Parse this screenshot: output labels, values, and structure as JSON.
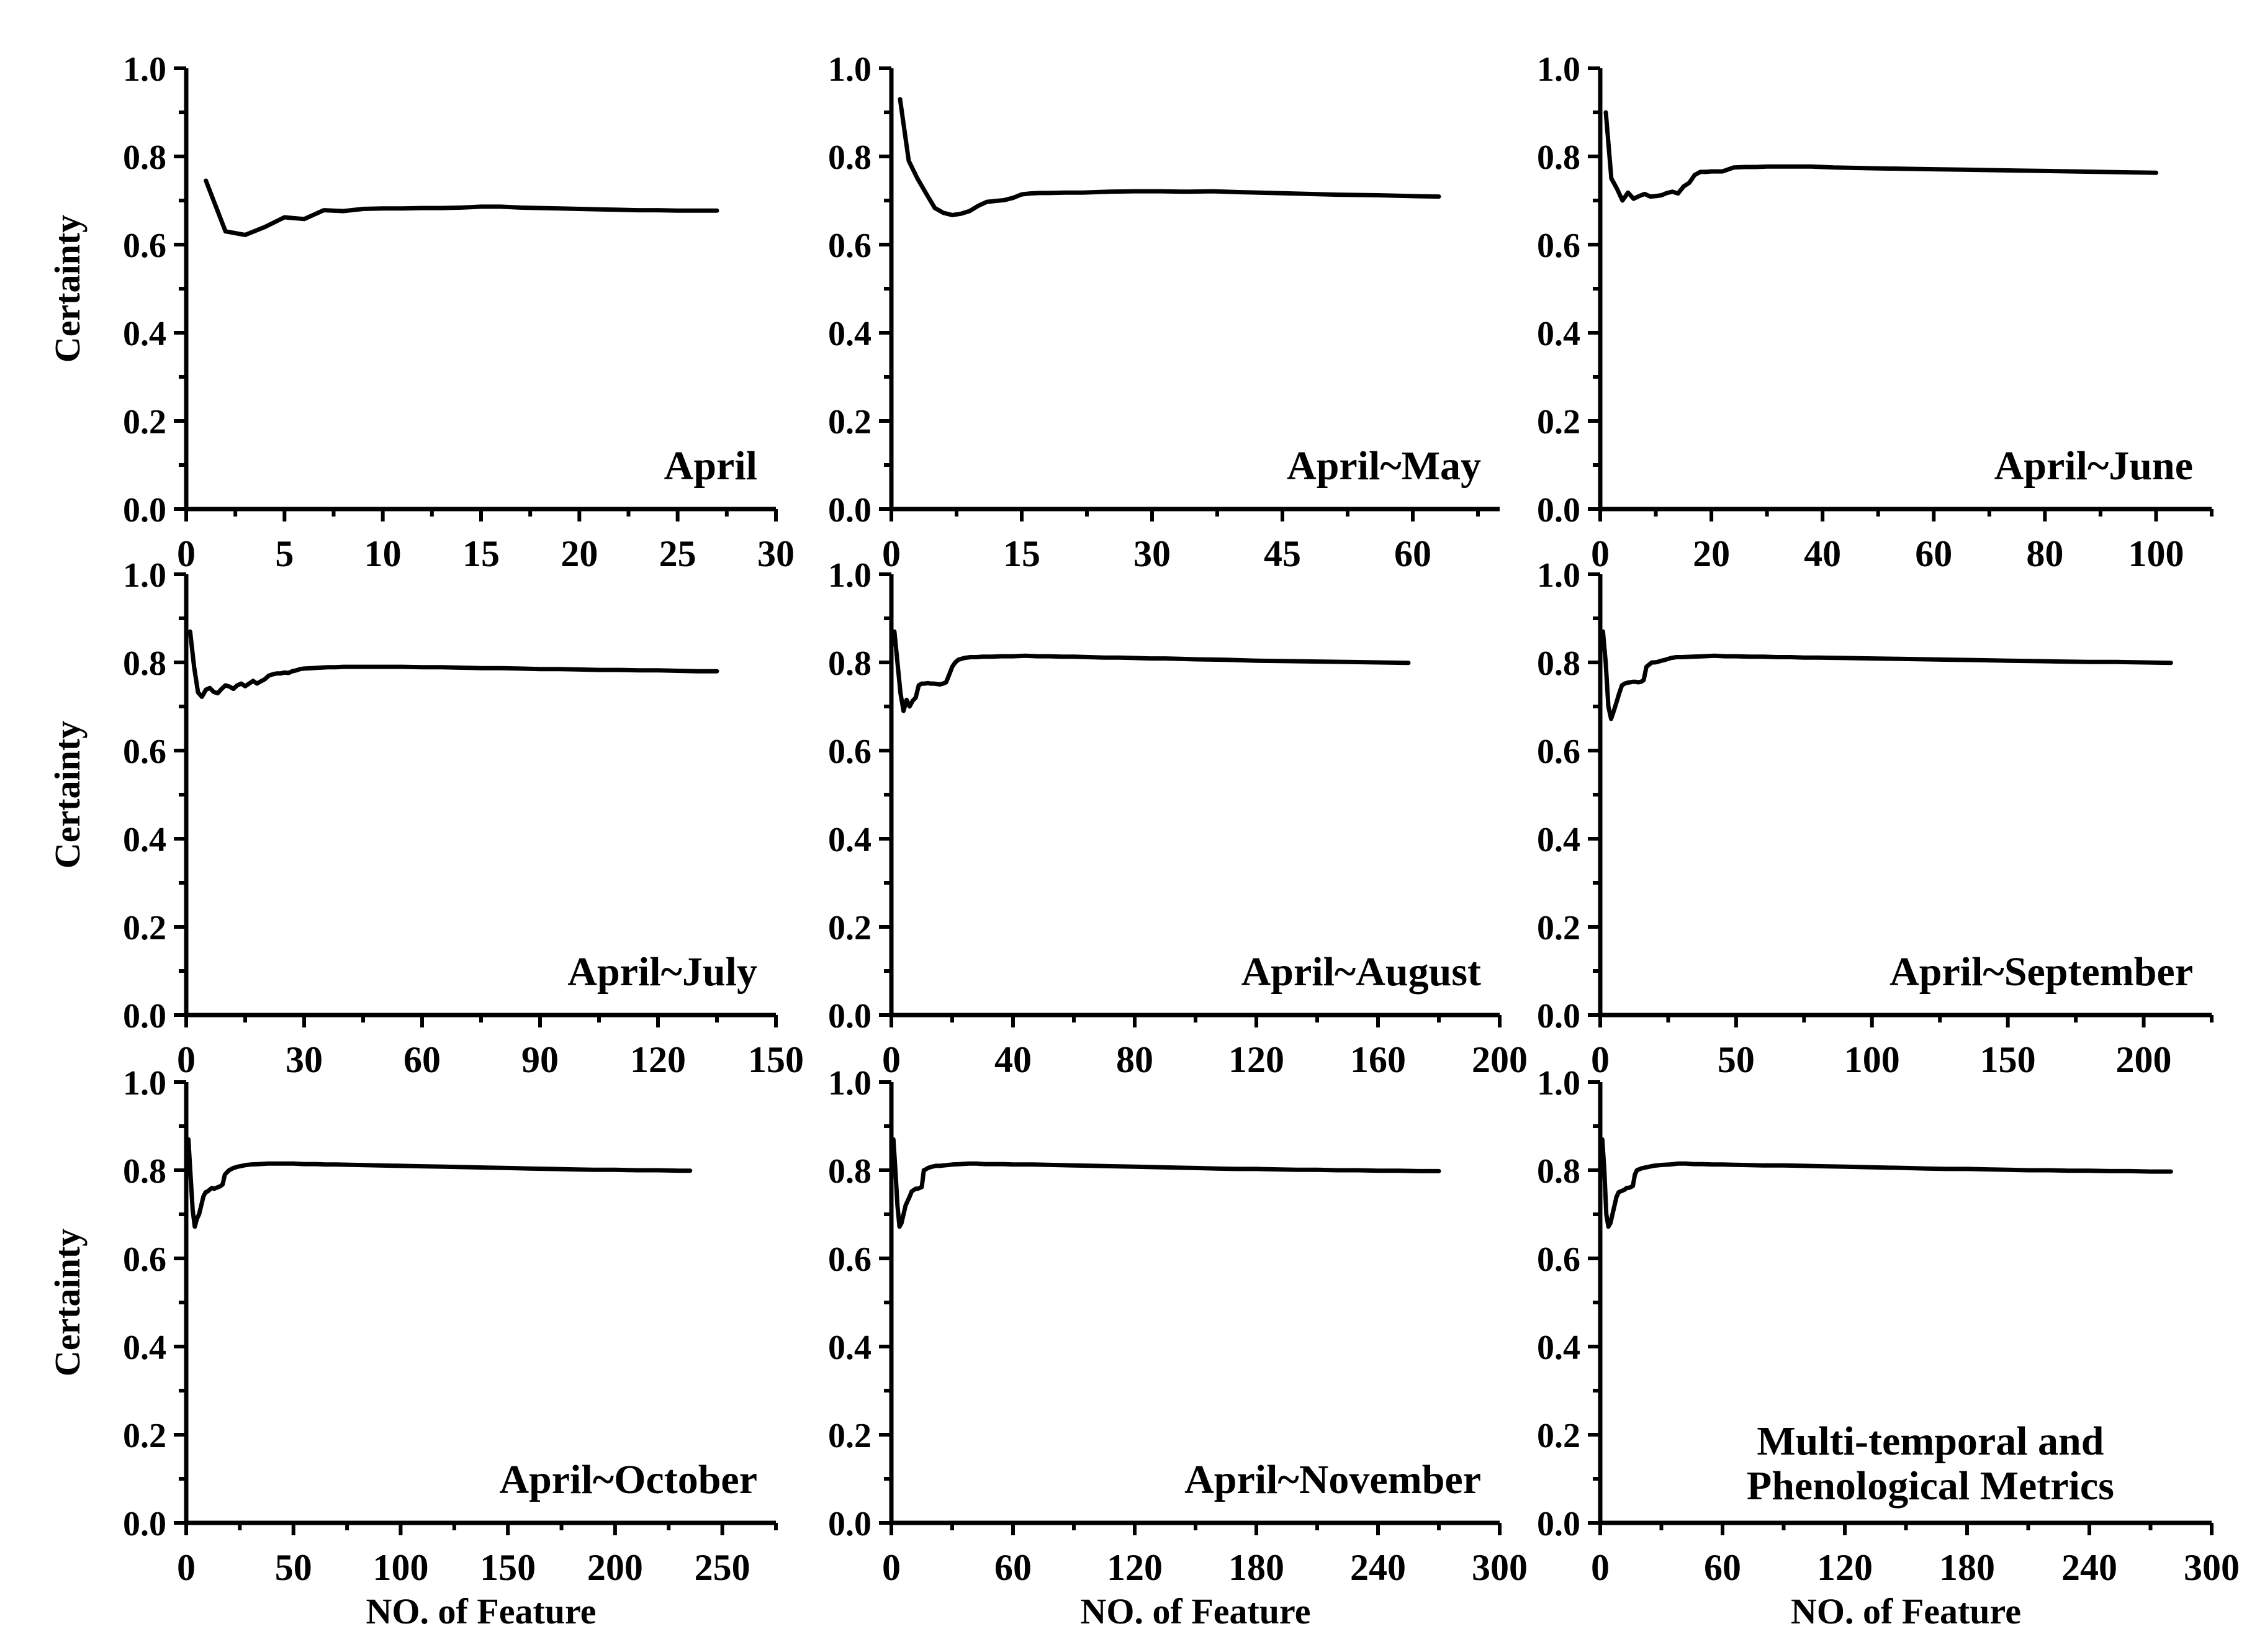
{
  "figure": {
    "background": "#ffffff",
    "line_color": "#000000",
    "text_color": "#000000",
    "ylabel": "Certainty",
    "xlabel": "NO. of Feature",
    "ylim": [
      0.0,
      1.0
    ],
    "yticks": [
      0.0,
      0.2,
      0.4,
      0.6,
      0.8,
      1.0
    ],
    "ytick_labels": [
      "0.0",
      "0.2",
      "0.4",
      "0.6",
      "0.8",
      "1.0"
    ],
    "y_minor_step": 0.1,
    "grid": false,
    "legend": "none"
  },
  "chart_data": [
    {
      "type": "line",
      "id": "april",
      "title_lines": [
        "April"
      ],
      "title_align": "right",
      "show_ylabel": true,
      "show_xlabel": false,
      "xlim": 30,
      "xticks": [
        0,
        5,
        10,
        15,
        20,
        25,
        30
      ],
      "x_minor_step": 2.5,
      "x": [
        1,
        2,
        3,
        4,
        5,
        6,
        7,
        8,
        9,
        10,
        11,
        12,
        13,
        14,
        15,
        16,
        17,
        18,
        19,
        20,
        21,
        22,
        23,
        24,
        25,
        26,
        27
      ],
      "y": [
        0.745,
        0.63,
        0.622,
        0.64,
        0.662,
        0.658,
        0.678,
        0.676,
        0.681,
        0.682,
        0.682,
        0.683,
        0.683,
        0.684,
        0.686,
        0.686,
        0.684,
        0.683,
        0.682,
        0.681,
        0.68,
        0.679,
        0.678,
        0.678,
        0.677,
        0.677,
        0.677
      ]
    },
    {
      "type": "line",
      "id": "april-may",
      "title_lines": [
        "April~May"
      ],
      "title_align": "right",
      "show_ylabel": false,
      "show_xlabel": false,
      "xlim": 70,
      "xticks": [
        0,
        15,
        30,
        45,
        60
      ],
      "x_minor_step": 7.5,
      "x": [
        1,
        2,
        3,
        4,
        5,
        6,
        7,
        8,
        9,
        10,
        11,
        12,
        13,
        14,
        15,
        16,
        17,
        18,
        20,
        22,
        25,
        28,
        31,
        34,
        37,
        40,
        44,
        48,
        52,
        56,
        60,
        63
      ],
      "y": [
        0.93,
        0.79,
        0.75,
        0.716,
        0.683,
        0.672,
        0.667,
        0.67,
        0.676,
        0.688,
        0.697,
        0.699,
        0.701,
        0.706,
        0.714,
        0.716,
        0.717,
        0.717,
        0.718,
        0.718,
        0.72,
        0.721,
        0.721,
        0.72,
        0.721,
        0.719,
        0.717,
        0.715,
        0.713,
        0.712,
        0.71,
        0.709
      ]
    },
    {
      "type": "line",
      "id": "april-june",
      "title_lines": [
        "April~June"
      ],
      "title_align": "right",
      "show_ylabel": false,
      "show_xlabel": false,
      "xlim": 110,
      "xticks": [
        0,
        20,
        40,
        60,
        80,
        100
      ],
      "x_minor_step": 10,
      "x": [
        1,
        2,
        3,
        4,
        5,
        6,
        7,
        8,
        9,
        10,
        11,
        12,
        13,
        14,
        15,
        16,
        17,
        18,
        19,
        20,
        22,
        24,
        26,
        28,
        30,
        34,
        38,
        42,
        46,
        50,
        55,
        60,
        65,
        70,
        75,
        80,
        85,
        90,
        95,
        100
      ],
      "y": [
        0.9,
        0.75,
        0.727,
        0.7,
        0.718,
        0.704,
        0.71,
        0.715,
        0.709,
        0.71,
        0.712,
        0.717,
        0.72,
        0.716,
        0.732,
        0.74,
        0.758,
        0.765,
        0.765,
        0.766,
        0.766,
        0.775,
        0.776,
        0.776,
        0.777,
        0.777,
        0.777,
        0.775,
        0.774,
        0.773,
        0.772,
        0.771,
        0.77,
        0.769,
        0.768,
        0.767,
        0.766,
        0.765,
        0.764,
        0.763
      ]
    },
    {
      "type": "line",
      "id": "april-july",
      "title_lines": [
        "April~July"
      ],
      "title_align": "right",
      "show_ylabel": true,
      "show_xlabel": false,
      "xlim": 150,
      "xticks": [
        0,
        30,
        60,
        90,
        120,
        150
      ],
      "x_minor_step": 15,
      "x": [
        1,
        2,
        3,
        4,
        5,
        6,
        7,
        8,
        9,
        10,
        11,
        12,
        13,
        14,
        15,
        16,
        17,
        18,
        19,
        20,
        21,
        22,
        23,
        24,
        25,
        26,
        27,
        28,
        29,
        30,
        32,
        34,
        36,
        38,
        40,
        45,
        50,
        55,
        60,
        65,
        70,
        75,
        80,
        85,
        90,
        95,
        100,
        105,
        110,
        115,
        120,
        125,
        130,
        135
      ],
      "y": [
        0.87,
        0.79,
        0.732,
        0.722,
        0.738,
        0.742,
        0.733,
        0.73,
        0.74,
        0.748,
        0.745,
        0.74,
        0.748,
        0.752,
        0.746,
        0.752,
        0.758,
        0.752,
        0.757,
        0.762,
        0.77,
        0.773,
        0.775,
        0.775,
        0.777,
        0.776,
        0.78,
        0.782,
        0.785,
        0.786,
        0.787,
        0.788,
        0.789,
        0.789,
        0.79,
        0.79,
        0.79,
        0.79,
        0.789,
        0.789,
        0.788,
        0.787,
        0.787,
        0.786,
        0.785,
        0.785,
        0.784,
        0.783,
        0.783,
        0.782,
        0.782,
        0.781,
        0.78,
        0.78
      ]
    },
    {
      "type": "line",
      "id": "april-august",
      "title_lines": [
        "April~August"
      ],
      "title_align": "right",
      "show_ylabel": false,
      "show_xlabel": false,
      "xlim": 200,
      "xticks": [
        0,
        40,
        80,
        120,
        160,
        200
      ],
      "x_minor_step": 20,
      "x": [
        1,
        2,
        3,
        4,
        5,
        6,
        7,
        8,
        9,
        10,
        11,
        12,
        13,
        14,
        15,
        16,
        17,
        18,
        19,
        20,
        21,
        22,
        23,
        24,
        26,
        28,
        30,
        33,
        36,
        40,
        44,
        48,
        52,
        56,
        60,
        65,
        70,
        75,
        80,
        85,
        90,
        95,
        100,
        110,
        120,
        130,
        140,
        150,
        160,
        170
      ],
      "y": [
        0.87,
        0.8,
        0.73,
        0.69,
        0.715,
        0.7,
        0.713,
        0.72,
        0.748,
        0.752,
        0.752,
        0.753,
        0.752,
        0.752,
        0.751,
        0.75,
        0.752,
        0.755,
        0.772,
        0.79,
        0.8,
        0.806,
        0.808,
        0.81,
        0.812,
        0.812,
        0.813,
        0.813,
        0.814,
        0.814,
        0.815,
        0.814,
        0.814,
        0.813,
        0.813,
        0.812,
        0.811,
        0.811,
        0.81,
        0.809,
        0.809,
        0.808,
        0.807,
        0.806,
        0.804,
        0.803,
        0.802,
        0.801,
        0.8,
        0.799
      ]
    },
    {
      "type": "line",
      "id": "april-september",
      "title_lines": [
        "April~September"
      ],
      "title_align": "right",
      "show_ylabel": false,
      "show_xlabel": false,
      "xlim": 225,
      "xticks": [
        0,
        50,
        100,
        150,
        200
      ],
      "x_minor_step": 25,
      "x": [
        1,
        2,
        3,
        4,
        5,
        6,
        7,
        8,
        9,
        10,
        11,
        12,
        13,
        14,
        15,
        16,
        17,
        18,
        19,
        20,
        21,
        22,
        24,
        26,
        28,
        30,
        34,
        38,
        42,
        46,
        50,
        55,
        60,
        65,
        70,
        75,
        80,
        90,
        100,
        110,
        120,
        130,
        140,
        150,
        160,
        170,
        180,
        190,
        200,
        210
      ],
      "y": [
        0.87,
        0.8,
        0.7,
        0.672,
        0.69,
        0.71,
        0.73,
        0.748,
        0.752,
        0.754,
        0.755,
        0.756,
        0.756,
        0.755,
        0.756,
        0.76,
        0.79,
        0.795,
        0.8,
        0.8,
        0.801,
        0.803,
        0.806,
        0.81,
        0.812,
        0.812,
        0.813,
        0.814,
        0.815,
        0.814,
        0.814,
        0.813,
        0.813,
        0.812,
        0.812,
        0.811,
        0.811,
        0.81,
        0.809,
        0.808,
        0.807,
        0.806,
        0.805,
        0.804,
        0.803,
        0.802,
        0.801,
        0.801,
        0.8,
        0.799
      ]
    },
    {
      "type": "line",
      "id": "april-october",
      "title_lines": [
        "April~October"
      ],
      "title_align": "right",
      "show_ylabel": true,
      "show_xlabel": true,
      "xlim": 275,
      "xticks": [
        0,
        50,
        100,
        150,
        200,
        250
      ],
      "x_minor_step": 25,
      "x": [
        1,
        2,
        3,
        4,
        5,
        6,
        7,
        8,
        9,
        10,
        11,
        12,
        13,
        14,
        15,
        16,
        17,
        18,
        19,
        20,
        22,
        24,
        26,
        28,
        30,
        34,
        38,
        42,
        46,
        50,
        55,
        60,
        65,
        70,
        80,
        90,
        100,
        110,
        120,
        130,
        140,
        150,
        160,
        170,
        180,
        190,
        200,
        210,
        220,
        230,
        235
      ],
      "y": [
        0.87,
        0.79,
        0.71,
        0.672,
        0.69,
        0.7,
        0.72,
        0.74,
        0.75,
        0.752,
        0.756,
        0.76,
        0.758,
        0.76,
        0.762,
        0.764,
        0.768,
        0.79,
        0.795,
        0.8,
        0.805,
        0.808,
        0.81,
        0.812,
        0.813,
        0.814,
        0.815,
        0.815,
        0.815,
        0.815,
        0.814,
        0.814,
        0.813,
        0.813,
        0.812,
        0.811,
        0.81,
        0.809,
        0.808,
        0.807,
        0.806,
        0.805,
        0.804,
        0.803,
        0.802,
        0.801,
        0.801,
        0.8,
        0.8,
        0.799,
        0.799
      ]
    },
    {
      "type": "line",
      "id": "april-november",
      "title_lines": [
        "April~November"
      ],
      "title_align": "right",
      "show_ylabel": false,
      "show_xlabel": true,
      "xlim": 300,
      "xticks": [
        0,
        60,
        120,
        180,
        240,
        300
      ],
      "x_minor_step": 30,
      "x": [
        1,
        2,
        3,
        4,
        5,
        6,
        7,
        8,
        9,
        10,
        11,
        12,
        13,
        14,
        15,
        16,
        17,
        18,
        20,
        22,
        24,
        26,
        28,
        30,
        34,
        38,
        42,
        46,
        50,
        55,
        60,
        65,
        70,
        80,
        90,
        100,
        110,
        120,
        130,
        140,
        150,
        160,
        170,
        180,
        190,
        200,
        210,
        220,
        230,
        240,
        250,
        260,
        270
      ],
      "y": [
        0.87,
        0.8,
        0.72,
        0.672,
        0.68,
        0.7,
        0.72,
        0.73,
        0.74,
        0.752,
        0.755,
        0.758,
        0.758,
        0.76,
        0.762,
        0.8,
        0.802,
        0.805,
        0.808,
        0.81,
        0.81,
        0.811,
        0.812,
        0.813,
        0.814,
        0.815,
        0.815,
        0.814,
        0.814,
        0.814,
        0.813,
        0.813,
        0.813,
        0.812,
        0.811,
        0.81,
        0.809,
        0.808,
        0.807,
        0.806,
        0.805,
        0.804,
        0.803,
        0.803,
        0.802,
        0.801,
        0.801,
        0.8,
        0.8,
        0.799,
        0.799,
        0.798,
        0.798
      ]
    },
    {
      "type": "line",
      "id": "multi-temporal",
      "title_lines": [
        "Multi-temporal and",
        "Phenological Metrics"
      ],
      "title_align": "center",
      "show_ylabel": false,
      "show_xlabel": true,
      "xlim": 300,
      "xticks": [
        0,
        60,
        120,
        180,
        240,
        300
      ],
      "x_minor_step": 30,
      "x": [
        1,
        2,
        3,
        4,
        5,
        6,
        7,
        8,
        9,
        10,
        11,
        12,
        13,
        14,
        15,
        16,
        17,
        18,
        19,
        20,
        22,
        24,
        26,
        28,
        30,
        34,
        38,
        42,
        46,
        50,
        55,
        60,
        70,
        80,
        90,
        100,
        110,
        120,
        130,
        140,
        150,
        160,
        170,
        180,
        190,
        200,
        210,
        220,
        230,
        240,
        250,
        260,
        270,
        280
      ],
      "y": [
        0.87,
        0.8,
        0.7,
        0.672,
        0.68,
        0.7,
        0.72,
        0.74,
        0.75,
        0.752,
        0.754,
        0.756,
        0.76,
        0.76,
        0.762,
        0.764,
        0.79,
        0.8,
        0.802,
        0.804,
        0.806,
        0.808,
        0.81,
        0.811,
        0.812,
        0.813,
        0.815,
        0.815,
        0.814,
        0.814,
        0.813,
        0.813,
        0.812,
        0.811,
        0.811,
        0.81,
        0.809,
        0.808,
        0.807,
        0.806,
        0.805,
        0.804,
        0.803,
        0.803,
        0.802,
        0.801,
        0.8,
        0.8,
        0.799,
        0.799,
        0.798,
        0.798,
        0.797,
        0.797
      ]
    }
  ]
}
